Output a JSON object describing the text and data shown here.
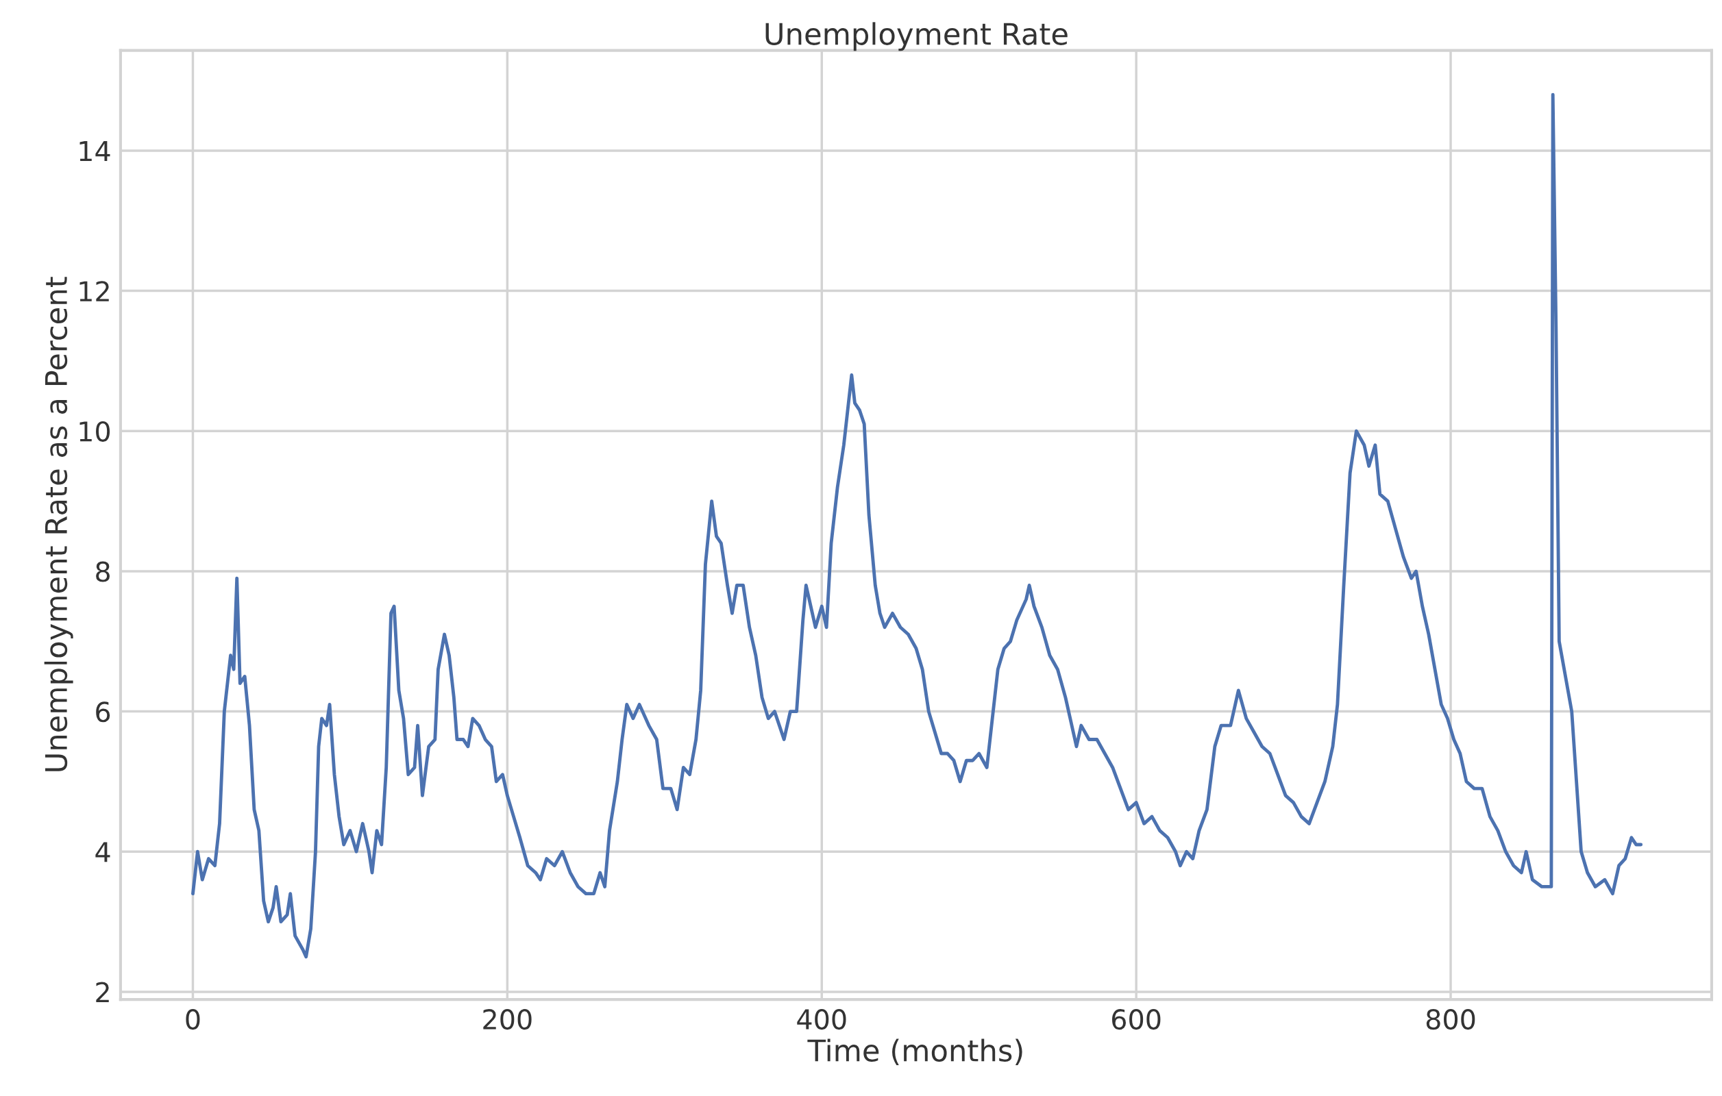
{
  "chart_data": {
    "type": "line",
    "title": "Unemployment Rate",
    "xlabel": "Time (months)",
    "ylabel": "Unemployment Rate as a Percent",
    "xlim": [
      -46,
      966
    ],
    "ylim": [
      1.89,
      15.43
    ],
    "xticks": [
      0,
      200,
      400,
      600,
      800
    ],
    "yticks": [
      2,
      4,
      6,
      8,
      10,
      12,
      14
    ],
    "grid": true,
    "line_style": "solid",
    "x": [
      0,
      3,
      6,
      10,
      14,
      17,
      20,
      24,
      26,
      28,
      30,
      33,
      36,
      39,
      42,
      45,
      48,
      51,
      53,
      56,
      60,
      62,
      65,
      70,
      72,
      75,
      78,
      80,
      82,
      85,
      87,
      90,
      93,
      96,
      100,
      104,
      108,
      112,
      114,
      117,
      120,
      123,
      126,
      128,
      131,
      134,
      137,
      141,
      143,
      146,
      150,
      154,
      156,
      160,
      163,
      166,
      168,
      172,
      175,
      178,
      182,
      186,
      190,
      193,
      197,
      200,
      204,
      208,
      213,
      218,
      221,
      225,
      230,
      235,
      240,
      245,
      250,
      255,
      259,
      262,
      265,
      270,
      273,
      276,
      280,
      284,
      290,
      295,
      299,
      304,
      308,
      312,
      316,
      320,
      323,
      326,
      330,
      333,
      336,
      340,
      343,
      346,
      350,
      354,
      358,
      362,
      366,
      370,
      373,
      376,
      380,
      384,
      388,
      390,
      393,
      396,
      400,
      403,
      406,
      410,
      414,
      417,
      419,
      421,
      424,
      427,
      430,
      434,
      437,
      440,
      445,
      450,
      455,
      460,
      464,
      468,
      472,
      476,
      480,
      484,
      488,
      492,
      496,
      500,
      505,
      508,
      512,
      516,
      520,
      524,
      530,
      532,
      535,
      540,
      545,
      550,
      555,
      558,
      562,
      565,
      570,
      575,
      580,
      585,
      590,
      595,
      600,
      605,
      610,
      615,
      620,
      625,
      628,
      632,
      636,
      640,
      645,
      650,
      654,
      660,
      665,
      670,
      675,
      680,
      685,
      690,
      695,
      700,
      705,
      710,
      715,
      720,
      725,
      728,
      732,
      736,
      740,
      745,
      748,
      752,
      755,
      760,
      765,
      770,
      775,
      778,
      782,
      786,
      790,
      794,
      798,
      802,
      806,
      810,
      815,
      820,
      825,
      830,
      835,
      840,
      845,
      848,
      852,
      858,
      864,
      865,
      867,
      869,
      873,
      877,
      880,
      883,
      887,
      892,
      898,
      903,
      907,
      911,
      915,
      918,
      921
    ],
    "series": [
      {
        "color": "#4c72b0",
        "values": [
          3.4,
          4.0,
          3.6,
          3.9,
          3.8,
          4.4,
          6.0,
          6.8,
          6.6,
          7.9,
          6.4,
          6.5,
          5.8,
          4.6,
          4.3,
          3.3,
          3.0,
          3.2,
          3.5,
          3.0,
          3.1,
          3.4,
          2.8,
          2.6,
          2.5,
          2.9,
          4.0,
          5.5,
          5.9,
          5.8,
          6.1,
          5.1,
          4.5,
          4.1,
          4.3,
          4.0,
          4.4,
          4.0,
          3.7,
          4.3,
          4.1,
          5.2,
          7.4,
          7.5,
          6.3,
          5.9,
          5.1,
          5.2,
          5.8,
          4.8,
          5.5,
          5.6,
          6.6,
          7.1,
          6.8,
          6.2,
          5.6,
          5.6,
          5.5,
          5.9,
          5.8,
          5.6,
          5.5,
          5.0,
          5.1,
          4.8,
          4.5,
          4.2,
          3.8,
          3.7,
          3.6,
          3.9,
          3.8,
          4.0,
          3.7,
          3.5,
          3.4,
          3.4,
          3.7,
          3.5,
          4.3,
          5.0,
          5.6,
          6.1,
          5.9,
          6.1,
          5.8,
          5.6,
          4.9,
          4.9,
          4.6,
          5.2,
          5.1,
          5.6,
          6.3,
          8.1,
          9.0,
          8.5,
          8.4,
          7.8,
          7.4,
          7.8,
          7.8,
          7.2,
          6.8,
          6.2,
          5.9,
          6.0,
          5.8,
          5.6,
          6.0,
          6.0,
          7.3,
          7.8,
          7.5,
          7.2,
          7.5,
          7.2,
          8.4,
          9.2,
          9.8,
          10.4,
          10.8,
          10.4,
          10.3,
          10.1,
          8.8,
          7.8,
          7.4,
          7.2,
          7.4,
          7.2,
          7.1,
          6.9,
          6.6,
          6.0,
          5.7,
          5.4,
          5.4,
          5.3,
          5.0,
          5.3,
          5.3,
          5.4,
          5.2,
          5.8,
          6.6,
          6.9,
          7.0,
          7.3,
          7.6,
          7.8,
          7.5,
          7.2,
          6.8,
          6.6,
          6.2,
          5.9,
          5.5,
          5.8,
          5.6,
          5.6,
          5.4,
          5.2,
          4.9,
          4.6,
          4.7,
          4.4,
          4.5,
          4.3,
          4.2,
          4.0,
          3.8,
          4.0,
          3.9,
          4.3,
          4.6,
          5.5,
          5.8,
          5.8,
          6.3,
          5.9,
          5.7,
          5.5,
          5.4,
          5.1,
          4.8,
          4.7,
          4.5,
          4.4,
          4.7,
          5.0,
          5.5,
          6.1,
          7.8,
          9.4,
          10.0,
          9.8,
          9.5,
          9.8,
          9.1,
          9.0,
          8.6,
          8.2,
          7.9,
          8.0,
          7.5,
          7.1,
          6.6,
          6.1,
          5.9,
          5.6,
          5.4,
          5.0,
          4.9,
          4.9,
          4.5,
          4.3,
          4.0,
          3.8,
          3.7,
          4.0,
          3.6,
          3.5,
          3.5,
          14.8,
          11.5,
          7.0,
          6.5,
          6.0,
          5.0,
          4.0,
          3.7,
          3.5,
          3.6,
          3.4,
          3.8,
          3.9,
          4.2,
          4.1,
          4.1
        ]
      }
    ]
  }
}
